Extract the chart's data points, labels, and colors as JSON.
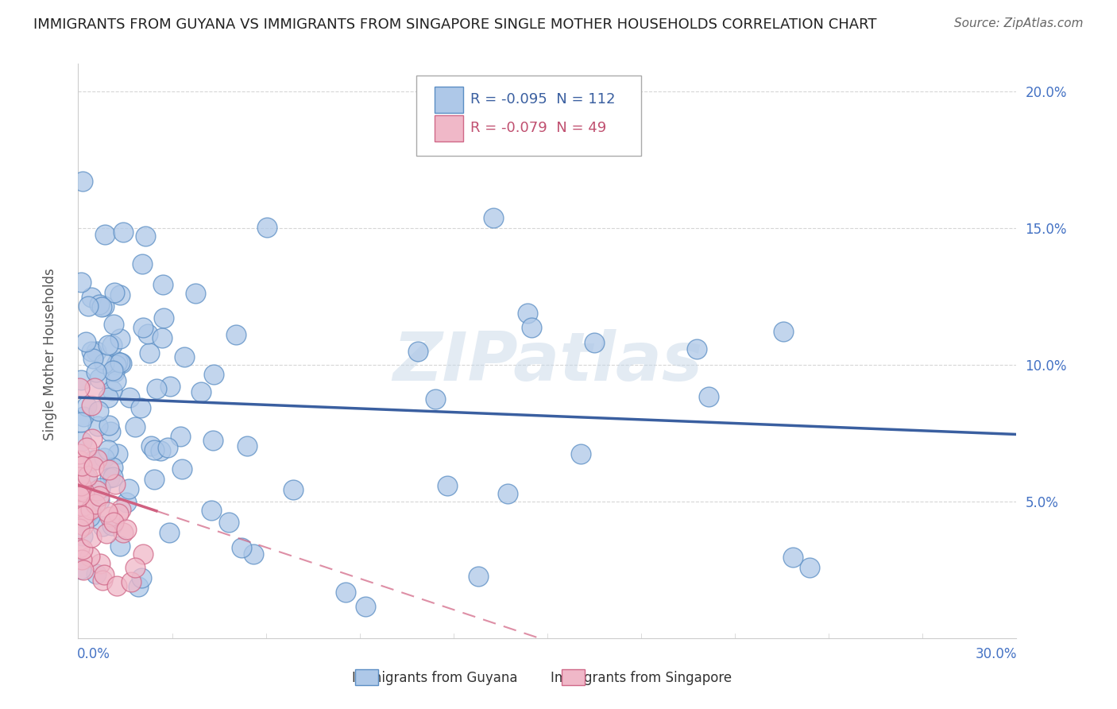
{
  "title": "IMMIGRANTS FROM GUYANA VS IMMIGRANTS FROM SINGAPORE SINGLE MOTHER HOUSEHOLDS CORRELATION CHART",
  "source": "Source: ZipAtlas.com",
  "ylabel": "Single Mother Households",
  "ylim": [
    0.0,
    0.21
  ],
  "xlim": [
    0.0,
    0.3
  ],
  "yticks": [
    0.05,
    0.1,
    0.15,
    0.2
  ],
  "ytick_labels": [
    "5.0%",
    "10.0%",
    "15.0%",
    "20.0%"
  ],
  "legend_guyana_text": "R = -0.095  N = 112",
  "legend_singapore_text": "R = -0.079  N = 49",
  "guyana_color": "#aec8e8",
  "guyana_edge_color": "#5b8ec4",
  "singapore_color": "#f0b8c8",
  "singapore_edge_color": "#d06888",
  "guyana_line_color": "#3a5fa0",
  "singapore_line_color": "#d06080",
  "watermark_text": "ZIPatlas",
  "background_color": "#ffffff",
  "title_fontsize": 13,
  "source_fontsize": 11,
  "tick_fontsize": 12,
  "legend_fontsize": 13
}
